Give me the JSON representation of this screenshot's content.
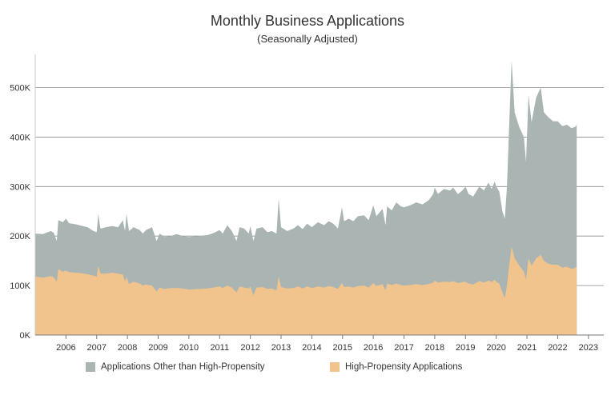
{
  "chart_data": {
    "type": "area",
    "title": "Monthly Business Applications",
    "subtitle": "(Seasonally Adjusted)",
    "xlabel": "",
    "ylabel": "",
    "xlim": [
      2005,
      2023.5
    ],
    "ylim": [
      0,
      580000
    ],
    "yticks": [
      0,
      100000,
      200000,
      300000,
      400000,
      500000
    ],
    "ytick_labels": [
      "0K",
      "100K",
      "200K",
      "300K",
      "400K",
      "500K"
    ],
    "xticks": [
      2006,
      2007,
      2008,
      2009,
      2010,
      2011,
      2012,
      2013,
      2014,
      2015,
      2016,
      2017,
      2018,
      2019,
      2020,
      2021,
      2022,
      2023
    ],
    "xtick_labels": [
      "2006",
      "2007",
      "2008",
      "2009",
      "2010",
      "2011",
      "2012",
      "2013",
      "2014",
      "2015",
      "2016",
      "2017",
      "2018",
      "2019",
      "2020",
      "2021",
      "2022",
      "2023"
    ],
    "grid": "horizontal",
    "legend_position": "bottom",
    "series": [
      {
        "name": "Applications Other than High-Propensity",
        "color": "#a9b4b3",
        "note": "values are total business applications (top of stacked area)",
        "points": [
          [
            2005.0,
            205000
          ],
          [
            2005.25,
            204000
          ],
          [
            2005.5,
            210000
          ],
          [
            2005.6,
            207000
          ],
          [
            2005.7,
            190000
          ],
          [
            2005.75,
            232000
          ],
          [
            2005.9,
            228000
          ],
          [
            2006.0,
            235000
          ],
          [
            2006.1,
            226000
          ],
          [
            2006.3,
            224000
          ],
          [
            2006.5,
            221000
          ],
          [
            2006.7,
            218000
          ],
          [
            2006.9,
            210000
          ],
          [
            2007.0,
            208000
          ],
          [
            2007.05,
            245000
          ],
          [
            2007.12,
            215000
          ],
          [
            2007.3,
            218000
          ],
          [
            2007.5,
            220000
          ],
          [
            2007.7,
            218000
          ],
          [
            2007.85,
            232000
          ],
          [
            2007.92,
            210000
          ],
          [
            2007.97,
            245000
          ],
          [
            2008.05,
            210000
          ],
          [
            2008.2,
            218000
          ],
          [
            2008.4,
            212000
          ],
          [
            2008.5,
            205000
          ],
          [
            2008.6,
            212000
          ],
          [
            2008.8,
            218000
          ],
          [
            2008.95,
            190000
          ],
          [
            2009.05,
            205000
          ],
          [
            2009.2,
            198000
          ],
          [
            2009.4,
            200000
          ],
          [
            2009.6,
            204000
          ],
          [
            2009.8,
            200000
          ],
          [
            2010.0,
            198000
          ],
          [
            2010.3,
            200000
          ],
          [
            2010.6,
            202000
          ],
          [
            2010.8,
            206000
          ],
          [
            2011.0,
            212000
          ],
          [
            2011.1,
            205000
          ],
          [
            2011.25,
            222000
          ],
          [
            2011.4,
            210000
          ],
          [
            2011.55,
            190000
          ],
          [
            2011.65,
            218000
          ],
          [
            2011.8,
            215000
          ],
          [
            2011.95,
            205000
          ],
          [
            2012.0,
            220000
          ],
          [
            2012.1,
            190000
          ],
          [
            2012.2,
            215000
          ],
          [
            2012.4,
            218000
          ],
          [
            2012.55,
            208000
          ],
          [
            2012.7,
            210000
          ],
          [
            2012.85,
            205000
          ],
          [
            2012.92,
            275000
          ],
          [
            2013.0,
            218000
          ],
          [
            2013.2,
            210000
          ],
          [
            2013.4,
            215000
          ],
          [
            2013.55,
            222000
          ],
          [
            2013.7,
            214000
          ],
          [
            2013.85,
            225000
          ],
          [
            2014.0,
            218000
          ],
          [
            2014.2,
            228000
          ],
          [
            2014.4,
            222000
          ],
          [
            2014.55,
            230000
          ],
          [
            2014.7,
            225000
          ],
          [
            2014.85,
            215000
          ],
          [
            2014.98,
            258000
          ],
          [
            2015.05,
            230000
          ],
          [
            2015.2,
            235000
          ],
          [
            2015.35,
            230000
          ],
          [
            2015.5,
            240000
          ],
          [
            2015.7,
            242000
          ],
          [
            2015.85,
            232000
          ],
          [
            2016.0,
            262000
          ],
          [
            2016.1,
            240000
          ],
          [
            2016.3,
            255000
          ],
          [
            2016.4,
            222000
          ],
          [
            2016.45,
            260000
          ],
          [
            2016.6,
            252000
          ],
          [
            2016.75,
            268000
          ],
          [
            2016.9,
            260000
          ],
          [
            2017.0,
            258000
          ],
          [
            2017.2,
            262000
          ],
          [
            2017.4,
            268000
          ],
          [
            2017.6,
            264000
          ],
          [
            2017.8,
            272000
          ],
          [
            2017.95,
            285000
          ],
          [
            2018.0,
            298000
          ],
          [
            2018.1,
            285000
          ],
          [
            2018.3,
            295000
          ],
          [
            2018.5,
            292000
          ],
          [
            2018.6,
            298000
          ],
          [
            2018.75,
            285000
          ],
          [
            2018.9,
            292000
          ],
          [
            2019.0,
            300000
          ],
          [
            2019.1,
            285000
          ],
          [
            2019.25,
            280000
          ],
          [
            2019.45,
            300000
          ],
          [
            2019.6,
            292000
          ],
          [
            2019.75,
            308000
          ],
          [
            2019.85,
            295000
          ],
          [
            2019.95,
            310000
          ],
          [
            2020.0,
            300000
          ],
          [
            2020.1,
            290000
          ],
          [
            2020.2,
            250000
          ],
          [
            2020.28,
            235000
          ],
          [
            2020.35,
            300000
          ],
          [
            2020.42,
            420000
          ],
          [
            2020.5,
            555000
          ],
          [
            2020.6,
            450000
          ],
          [
            2020.75,
            420000
          ],
          [
            2020.9,
            400000
          ],
          [
            2020.97,
            350000
          ],
          [
            2021.05,
            485000
          ],
          [
            2021.15,
            430000
          ],
          [
            2021.3,
            480000
          ],
          [
            2021.45,
            500000
          ],
          [
            2021.55,
            450000
          ],
          [
            2021.7,
            440000
          ],
          [
            2021.85,
            432000
          ],
          [
            2022.0,
            432000
          ],
          [
            2022.15,
            422000
          ],
          [
            2022.3,
            425000
          ],
          [
            2022.45,
            418000
          ],
          [
            2022.55,
            420000
          ],
          [
            2022.6,
            422000
          ],
          [
            2022.62,
            428000
          ]
        ]
      },
      {
        "name": "High-Propensity Applications",
        "color": "#f2c48d",
        "points": [
          [
            2005.0,
            118000
          ],
          [
            2005.25,
            116000
          ],
          [
            2005.5,
            119000
          ],
          [
            2005.6,
            117000
          ],
          [
            2005.7,
            108000
          ],
          [
            2005.75,
            133000
          ],
          [
            2005.9,
            128000
          ],
          [
            2006.0,
            130000
          ],
          [
            2006.1,
            127000
          ],
          [
            2006.3,
            126000
          ],
          [
            2006.5,
            125000
          ],
          [
            2006.7,
            123000
          ],
          [
            2006.9,
            120000
          ],
          [
            2007.0,
            118000
          ],
          [
            2007.05,
            140000
          ],
          [
            2007.12,
            124000
          ],
          [
            2007.3,
            124000
          ],
          [
            2007.5,
            126000
          ],
          [
            2007.7,
            124000
          ],
          [
            2007.85,
            122000
          ],
          [
            2007.92,
            108000
          ],
          [
            2007.97,
            118000
          ],
          [
            2008.05,
            103000
          ],
          [
            2008.2,
            108000
          ],
          [
            2008.4,
            104000
          ],
          [
            2008.5,
            100000
          ],
          [
            2008.6,
            102000
          ],
          [
            2008.8,
            100000
          ],
          [
            2008.95,
            88000
          ],
          [
            2009.05,
            96000
          ],
          [
            2009.2,
            93000
          ],
          [
            2009.4,
            95000
          ],
          [
            2009.6,
            95000
          ],
          [
            2009.8,
            94000
          ],
          [
            2010.0,
            92000
          ],
          [
            2010.3,
            93000
          ],
          [
            2010.6,
            94000
          ],
          [
            2010.8,
            96000
          ],
          [
            2011.0,
            98000
          ],
          [
            2011.1,
            95000
          ],
          [
            2011.25,
            100000
          ],
          [
            2011.4,
            96000
          ],
          [
            2011.55,
            86000
          ],
          [
            2011.65,
            98000
          ],
          [
            2011.8,
            96000
          ],
          [
            2011.95,
            94000
          ],
          [
            2012.0,
            98000
          ],
          [
            2012.1,
            80000
          ],
          [
            2012.2,
            96000
          ],
          [
            2012.4,
            97000
          ],
          [
            2012.55,
            93000
          ],
          [
            2012.7,
            94000
          ],
          [
            2012.85,
            90000
          ],
          [
            2012.92,
            118000
          ],
          [
            2013.0,
            97000
          ],
          [
            2013.2,
            94000
          ],
          [
            2013.4,
            95000
          ],
          [
            2013.55,
            98000
          ],
          [
            2013.7,
            94000
          ],
          [
            2013.85,
            98000
          ],
          [
            2014.0,
            95000
          ],
          [
            2014.2,
            98000
          ],
          [
            2014.4,
            96000
          ],
          [
            2014.55,
            99000
          ],
          [
            2014.7,
            97000
          ],
          [
            2014.85,
            93000
          ],
          [
            2014.98,
            105000
          ],
          [
            2015.05,
            97000
          ],
          [
            2015.2,
            98000
          ],
          [
            2015.35,
            96000
          ],
          [
            2015.5,
            99000
          ],
          [
            2015.7,
            100000
          ],
          [
            2015.85,
            96000
          ],
          [
            2016.0,
            105000
          ],
          [
            2016.1,
            99000
          ],
          [
            2016.3,
            103000
          ],
          [
            2016.4,
            90000
          ],
          [
            2016.45,
            104000
          ],
          [
            2016.6,
            101000
          ],
          [
            2016.75,
            104000
          ],
          [
            2016.9,
            101000
          ],
          [
            2017.0,
            100000
          ],
          [
            2017.2,
            101000
          ],
          [
            2017.4,
            103000
          ],
          [
            2017.6,
            101000
          ],
          [
            2017.8,
            103000
          ],
          [
            2017.95,
            106000
          ],
          [
            2018.0,
            110000
          ],
          [
            2018.1,
            106000
          ],
          [
            2018.3,
            108000
          ],
          [
            2018.5,
            107000
          ],
          [
            2018.6,
            109000
          ],
          [
            2018.75,
            105000
          ],
          [
            2018.9,
            107000
          ],
          [
            2019.0,
            108000
          ],
          [
            2019.1,
            104000
          ],
          [
            2019.25,
            102000
          ],
          [
            2019.45,
            109000
          ],
          [
            2019.6,
            106000
          ],
          [
            2019.75,
            110000
          ],
          [
            2019.85,
            107000
          ],
          [
            2019.95,
            112000
          ],
          [
            2020.0,
            108000
          ],
          [
            2020.1,
            104000
          ],
          [
            2020.2,
            86000
          ],
          [
            2020.28,
            75000
          ],
          [
            2020.35,
            100000
          ],
          [
            2020.42,
            140000
          ],
          [
            2020.5,
            178000
          ],
          [
            2020.6,
            155000
          ],
          [
            2020.75,
            140000
          ],
          [
            2020.9,
            128000
          ],
          [
            2020.97,
            112000
          ],
          [
            2021.05,
            155000
          ],
          [
            2021.15,
            140000
          ],
          [
            2021.3,
            155000
          ],
          [
            2021.45,
            162000
          ],
          [
            2021.55,
            150000
          ],
          [
            2021.7,
            144000
          ],
          [
            2021.85,
            142000
          ],
          [
            2022.0,
            142000
          ],
          [
            2022.15,
            136000
          ],
          [
            2022.3,
            138000
          ],
          [
            2022.45,
            134000
          ],
          [
            2022.55,
            135000
          ],
          [
            2022.6,
            137000
          ],
          [
            2022.62,
            140000
          ]
        ]
      }
    ]
  }
}
